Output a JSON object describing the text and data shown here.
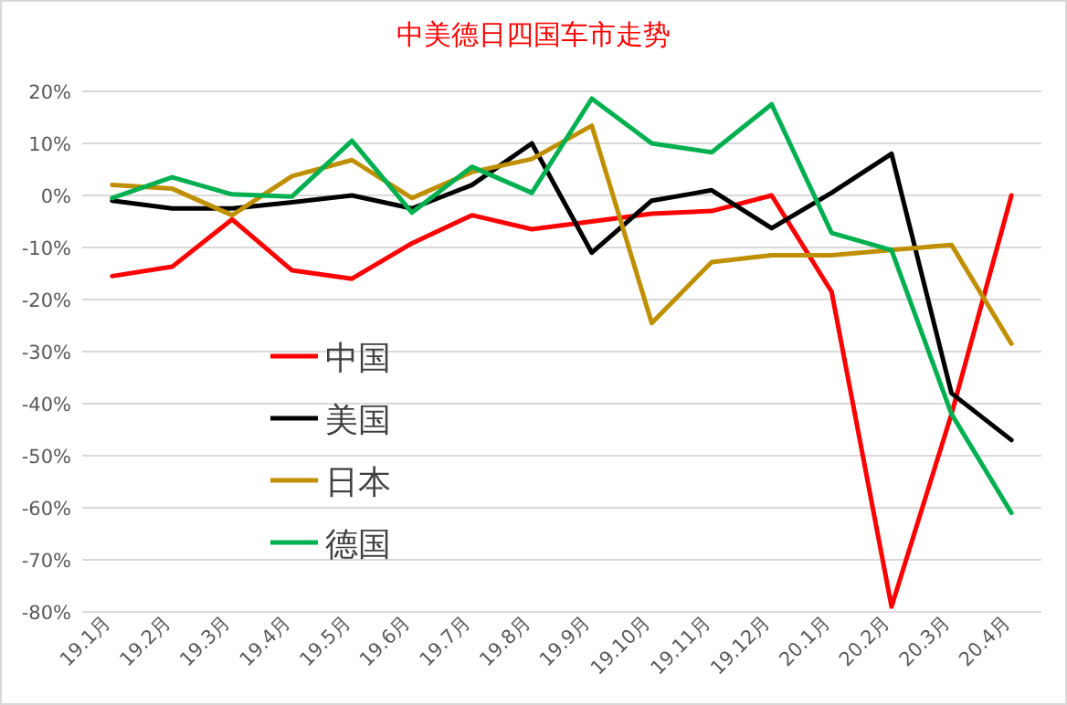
{
  "chart_data": {
    "type": "line",
    "title": "中美德日四国车市走势",
    "categories": [
      "19.1月",
      "19.2月",
      "19.3月",
      "19.4月",
      "19.5月",
      "19.6月",
      "19.7月",
      "19.8月",
      "19.9月",
      "19.10月",
      "19.11月",
      "19.12月",
      "20.1月",
      "20.2月",
      "20.3月",
      "20.4月"
    ],
    "series": [
      {
        "name": "中国",
        "color": "#ff0000",
        "values": [
          -15.5,
          -13.7,
          -4.6,
          -14.4,
          -16,
          -9.2,
          -3.8,
          -6.5,
          -5,
          -3.5,
          -3,
          0,
          -18.5,
          -79,
          -42,
          0
        ]
      },
      {
        "name": "美国",
        "color": "#000000",
        "values": [
          -1,
          -2.5,
          -2.5,
          -1.3,
          0,
          -2.5,
          2,
          10,
          -11,
          -1,
          1,
          -6.3,
          0.5,
          8,
          -38,
          -47
        ]
      },
      {
        "name": "日本",
        "color": "#bf8f00",
        "values": [
          2,
          1.3,
          -3.8,
          3.7,
          6.8,
          -0.5,
          4.5,
          7,
          13.4,
          -24.5,
          -12.8,
          -11.5,
          -11.5,
          -10.5,
          -9.5,
          -28.5
        ]
      },
      {
        "name": "德国",
        "color": "#00b050",
        "values": [
          -0.5,
          3.5,
          0.2,
          -0.2,
          10.5,
          -3.3,
          5.5,
          0.5,
          18.6,
          10,
          8.3,
          17.5,
          -7.2,
          -10.5,
          -42,
          -61
        ]
      }
    ],
    "ylim": [
      -80,
      20
    ],
    "yticks": [
      {
        "value": 20,
        "label": "20%"
      },
      {
        "value": 10,
        "label": "10%"
      },
      {
        "value": 0,
        "label": "0%"
      },
      {
        "value": -10,
        "label": "-10%"
      },
      {
        "value": -20,
        "label": "-20%"
      },
      {
        "value": -30,
        "label": "-30%"
      },
      {
        "value": -40,
        "label": "-40%"
      },
      {
        "value": -50,
        "label": "-50%"
      },
      {
        "value": -60,
        "label": "-60%"
      },
      {
        "value": -70,
        "label": "-70%"
      },
      {
        "value": -80,
        "label": "-80%"
      }
    ],
    "grid": "y",
    "legend": "left",
    "marker": "none",
    "line_style": "solid"
  }
}
